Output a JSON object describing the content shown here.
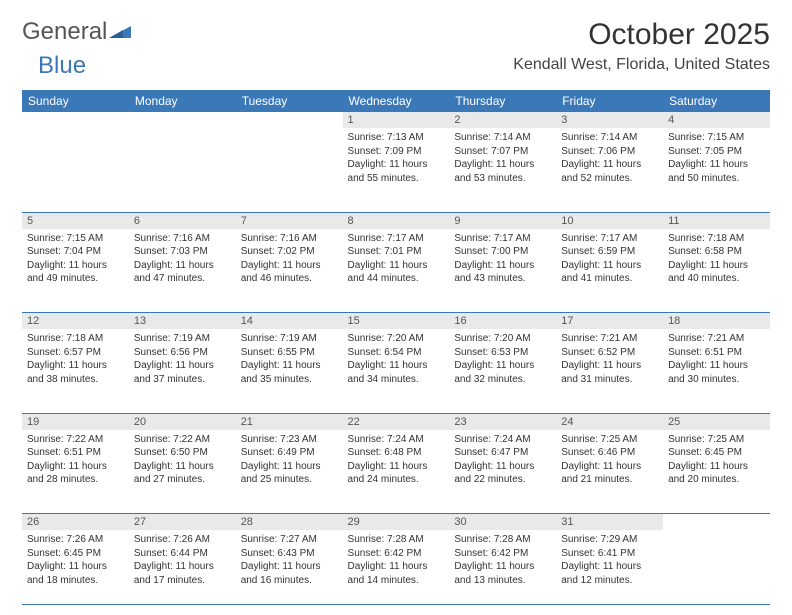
{
  "logo": {
    "text1": "General",
    "text2": "Blue"
  },
  "title": "October 2025",
  "location": "Kendall West, Florida, United States",
  "colors": {
    "accent": "#3a78b8",
    "daynum_bg": "#e9e9e9",
    "text": "#333333",
    "logo_gray": "#555558"
  },
  "weekdays": [
    "Sunday",
    "Monday",
    "Tuesday",
    "Wednesday",
    "Thursday",
    "Friday",
    "Saturday"
  ],
  "weeks": [
    [
      null,
      null,
      null,
      {
        "n": "1",
        "sr": "7:13 AM",
        "ss": "7:09 PM",
        "dh": "11",
        "dm": "55"
      },
      {
        "n": "2",
        "sr": "7:14 AM",
        "ss": "7:07 PM",
        "dh": "11",
        "dm": "53"
      },
      {
        "n": "3",
        "sr": "7:14 AM",
        "ss": "7:06 PM",
        "dh": "11",
        "dm": "52"
      },
      {
        "n": "4",
        "sr": "7:15 AM",
        "ss": "7:05 PM",
        "dh": "11",
        "dm": "50"
      }
    ],
    [
      {
        "n": "5",
        "sr": "7:15 AM",
        "ss": "7:04 PM",
        "dh": "11",
        "dm": "49"
      },
      {
        "n": "6",
        "sr": "7:16 AM",
        "ss": "7:03 PM",
        "dh": "11",
        "dm": "47"
      },
      {
        "n": "7",
        "sr": "7:16 AM",
        "ss": "7:02 PM",
        "dh": "11",
        "dm": "46"
      },
      {
        "n": "8",
        "sr": "7:17 AM",
        "ss": "7:01 PM",
        "dh": "11",
        "dm": "44"
      },
      {
        "n": "9",
        "sr": "7:17 AM",
        "ss": "7:00 PM",
        "dh": "11",
        "dm": "43"
      },
      {
        "n": "10",
        "sr": "7:17 AM",
        "ss": "6:59 PM",
        "dh": "11",
        "dm": "41"
      },
      {
        "n": "11",
        "sr": "7:18 AM",
        "ss": "6:58 PM",
        "dh": "11",
        "dm": "40"
      }
    ],
    [
      {
        "n": "12",
        "sr": "7:18 AM",
        "ss": "6:57 PM",
        "dh": "11",
        "dm": "38"
      },
      {
        "n": "13",
        "sr": "7:19 AM",
        "ss": "6:56 PM",
        "dh": "11",
        "dm": "37"
      },
      {
        "n": "14",
        "sr": "7:19 AM",
        "ss": "6:55 PM",
        "dh": "11",
        "dm": "35"
      },
      {
        "n": "15",
        "sr": "7:20 AM",
        "ss": "6:54 PM",
        "dh": "11",
        "dm": "34"
      },
      {
        "n": "16",
        "sr": "7:20 AM",
        "ss": "6:53 PM",
        "dh": "11",
        "dm": "32"
      },
      {
        "n": "17",
        "sr": "7:21 AM",
        "ss": "6:52 PM",
        "dh": "11",
        "dm": "31"
      },
      {
        "n": "18",
        "sr": "7:21 AM",
        "ss": "6:51 PM",
        "dh": "11",
        "dm": "30"
      }
    ],
    [
      {
        "n": "19",
        "sr": "7:22 AM",
        "ss": "6:51 PM",
        "dh": "11",
        "dm": "28"
      },
      {
        "n": "20",
        "sr": "7:22 AM",
        "ss": "6:50 PM",
        "dh": "11",
        "dm": "27"
      },
      {
        "n": "21",
        "sr": "7:23 AM",
        "ss": "6:49 PM",
        "dh": "11",
        "dm": "25"
      },
      {
        "n": "22",
        "sr": "7:24 AM",
        "ss": "6:48 PM",
        "dh": "11",
        "dm": "24"
      },
      {
        "n": "23",
        "sr": "7:24 AM",
        "ss": "6:47 PM",
        "dh": "11",
        "dm": "22"
      },
      {
        "n": "24",
        "sr": "7:25 AM",
        "ss": "6:46 PM",
        "dh": "11",
        "dm": "21"
      },
      {
        "n": "25",
        "sr": "7:25 AM",
        "ss": "6:45 PM",
        "dh": "11",
        "dm": "20"
      }
    ],
    [
      {
        "n": "26",
        "sr": "7:26 AM",
        "ss": "6:45 PM",
        "dh": "11",
        "dm": "18"
      },
      {
        "n": "27",
        "sr": "7:26 AM",
        "ss": "6:44 PM",
        "dh": "11",
        "dm": "17"
      },
      {
        "n": "28",
        "sr": "7:27 AM",
        "ss": "6:43 PM",
        "dh": "11",
        "dm": "16"
      },
      {
        "n": "29",
        "sr": "7:28 AM",
        "ss": "6:42 PM",
        "dh": "11",
        "dm": "14"
      },
      {
        "n": "30",
        "sr": "7:28 AM",
        "ss": "6:42 PM",
        "dh": "11",
        "dm": "13"
      },
      {
        "n": "31",
        "sr": "7:29 AM",
        "ss": "6:41 PM",
        "dh": "11",
        "dm": "12"
      },
      null
    ]
  ],
  "labels": {
    "sunrise": "Sunrise:",
    "sunset": "Sunset:",
    "daylight_prefix": "Daylight:",
    "hours_word": "hours",
    "and_word": "and",
    "minutes_word": "minutes."
  }
}
